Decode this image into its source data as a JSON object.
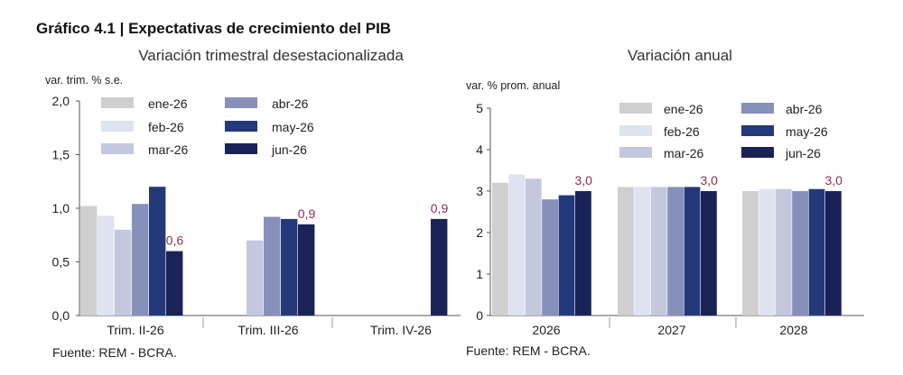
{
  "figure_title": "Gráfico 4.1 | Expectativas de crecimiento del PIB",
  "chart_data": [
    {
      "type": "bar",
      "title": "Variación trimestral desestacionalizada",
      "ylabel": "var. trim. % s.e.",
      "source": "Fuente: REM - BCRA.",
      "ylim": [
        0,
        2
      ],
      "yticks": [
        "0,0",
        "0,5",
        "1,0",
        "1,5",
        "2,0"
      ],
      "ytick_values": [
        0,
        0.5,
        1.0,
        1.5,
        2.0
      ],
      "categories": [
        "Trim. II-26",
        "Trim. III-26",
        "Trim. IV-26"
      ],
      "legend_position": "top-left",
      "grid": false,
      "series": [
        {
          "name": "ene-26",
          "color": "#cfcfcf",
          "values": [
            1.02,
            null,
            null
          ]
        },
        {
          "name": "feb-26",
          "color": "#dfe2ef",
          "values": [
            0.93,
            null,
            null
          ]
        },
        {
          "name": "mar-26",
          "color": "#c3c8df",
          "values": [
            0.8,
            0.7,
            null
          ]
        },
        {
          "name": "abr-26",
          "color": "#8790bb",
          "values": [
            1.04,
            0.92,
            null
          ]
        },
        {
          "name": "may-26",
          "color": "#24397a",
          "values": [
            1.2,
            0.9,
            null
          ]
        },
        {
          "name": "jun-26",
          "color": "#1a2355",
          "values": [
            0.6,
            0.85,
            0.9
          ]
        }
      ],
      "data_labels": [
        {
          "category": 0,
          "series": 5,
          "text": "0,6"
        },
        {
          "category": 1,
          "series": 5,
          "text": "0,9"
        },
        {
          "category": 2,
          "series": 5,
          "text": "0,9"
        }
      ]
    },
    {
      "type": "bar",
      "title": "Variación anual",
      "ylabel": "var. % prom. anual",
      "source": "Fuente: REM - BCRA.",
      "ylim": [
        0,
        5
      ],
      "yticks": [
        "0",
        "1",
        "2",
        "3",
        "4",
        "5"
      ],
      "ytick_values": [
        0,
        1,
        2,
        3,
        4,
        5
      ],
      "categories": [
        "2026",
        "2027",
        "2028"
      ],
      "legend_position": "top-right",
      "grid": false,
      "series": [
        {
          "name": "ene-26",
          "color": "#cfcfcf",
          "values": [
            3.2,
            3.1,
            3.0
          ]
        },
        {
          "name": "feb-26",
          "color": "#dfe2ef",
          "values": [
            3.4,
            3.1,
            3.05
          ]
        },
        {
          "name": "mar-26",
          "color": "#c3c8df",
          "values": [
            3.3,
            3.1,
            3.05
          ]
        },
        {
          "name": "abr-26",
          "color": "#8790bb",
          "values": [
            2.8,
            3.1,
            3.0
          ]
        },
        {
          "name": "may-26",
          "color": "#24397a",
          "values": [
            2.9,
            3.1,
            3.05
          ]
        },
        {
          "name": "jun-26",
          "color": "#1a2355",
          "values": [
            3.0,
            3.0,
            3.0
          ]
        }
      ],
      "data_labels": [
        {
          "category": 0,
          "series": 5,
          "text": "3,0"
        },
        {
          "category": 1,
          "series": 5,
          "text": "3,0"
        },
        {
          "category": 2,
          "series": 5,
          "text": "3,0"
        }
      ]
    }
  ]
}
